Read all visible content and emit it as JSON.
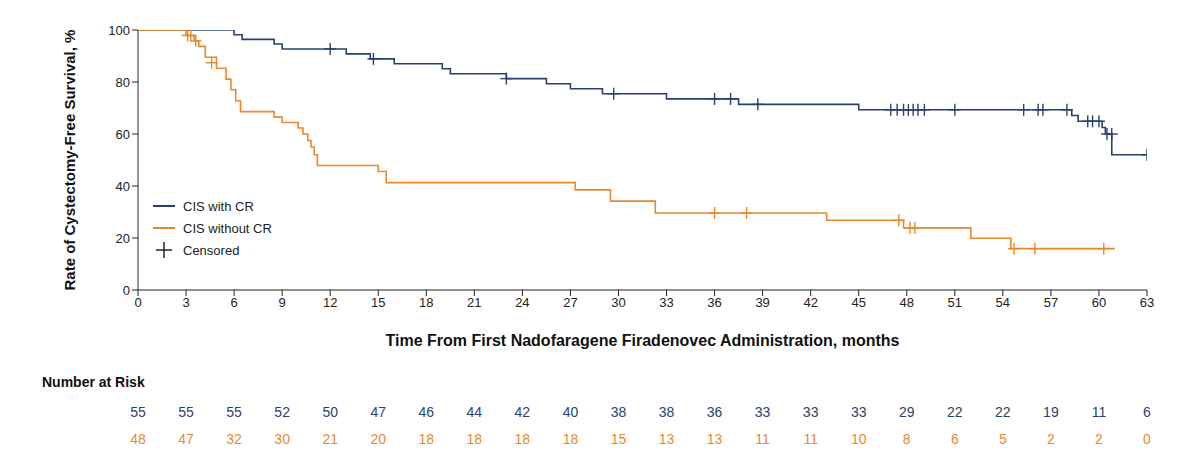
{
  "chart_data": {
    "type": "line",
    "line_style": "step",
    "x_label": "Time From First Nadofaragene Firadenovec Administration, months",
    "y_label": "Rate of Cystectomy-Free Survival, %",
    "xlim": [
      0,
      63
    ],
    "xticks": [
      0,
      3,
      6,
      9,
      12,
      15,
      18,
      21,
      24,
      27,
      30,
      33,
      36,
      39,
      42,
      45,
      48,
      51,
      54,
      57,
      60,
      63
    ],
    "ylim": [
      0,
      100
    ],
    "yticks": [
      0,
      20,
      40,
      60,
      80,
      100
    ],
    "grid": false,
    "legend": "lower left",
    "censored_label": "Censored",
    "series": [
      {
        "name": "CIS with CR",
        "color": "#2a4170",
        "x": [
          0,
          6,
          6.5,
          8.5,
          9,
          13,
          14.5,
          16,
          19,
          19.5,
          23,
          25.5,
          27,
          29,
          33,
          37.5,
          45,
          58.3,
          58.7,
          60.2,
          60.4,
          60.8,
          63.3
        ],
        "values": [
          100,
          98.2,
          96.4,
          94.6,
          92.7,
          90.8,
          88.9,
          87,
          85.1,
          83.2,
          81.3,
          79.3,
          77.4,
          75.5,
          73.5,
          71.4,
          69.3,
          67.1,
          64.9,
          62.5,
          60,
          52,
          52
        ],
        "censored_x": [
          12,
          14.7,
          23,
          29.7,
          36,
          37,
          38.7,
          47,
          47.4,
          47.8,
          48.1,
          48.4,
          48.7,
          49.1,
          51,
          55.3,
          56.2,
          56.5,
          58,
          59.3,
          59.6,
          60,
          60.5,
          60.8,
          63
        ],
        "censored_values": [
          92.7,
          88.9,
          81.3,
          75.5,
          73.5,
          73.5,
          71.4,
          69.3,
          69.3,
          69.3,
          69.3,
          69.3,
          69.3,
          69.3,
          69.3,
          69.3,
          69.3,
          69.3,
          69.3,
          64.9,
          64.9,
          64.9,
          60,
          60,
          52
        ]
      },
      {
        "name": "CIS without CR",
        "color": "#e8892e",
        "x": [
          0,
          3,
          3.5,
          3.8,
          4.2,
          4.9,
          5.5,
          5.8,
          6.1,
          6.4,
          8.5,
          9,
          10,
          10.3,
          10.6,
          10.8,
          11,
          11.2,
          15,
          15.5,
          27.3,
          29.5,
          32.3,
          43,
          47.8,
          52,
          54.5,
          61
        ],
        "values": [
          100,
          97.9,
          95.8,
          93.7,
          89.5,
          85.3,
          81.1,
          77,
          72.8,
          68.6,
          66.5,
          64.4,
          62.3,
          60,
          57.5,
          55,
          52,
          47.9,
          45.6,
          41.3,
          38.5,
          34.2,
          29.6,
          26.8,
          23.9,
          19.9,
          15.9,
          15.9
        ],
        "censored_x": [
          3.1,
          3.3,
          3.6,
          4.6,
          36,
          38,
          47.5,
          48.2,
          48.5,
          54.7,
          56,
          60.3
        ],
        "censored_values": [
          97.9,
          97.9,
          95.8,
          87.4,
          29.6,
          29.6,
          26.8,
          23.9,
          23.9,
          15.9,
          15.9,
          15.9
        ]
      }
    ],
    "number_at_risk": {
      "title": "Number at Risk",
      "rows": [
        [
          55,
          55,
          55,
          52,
          50,
          47,
          46,
          44,
          42,
          40,
          38,
          38,
          36,
          33,
          33,
          33,
          29,
          22,
          22,
          19,
          11,
          6
        ],
        [
          48,
          47,
          32,
          30,
          21,
          20,
          18,
          18,
          18,
          18,
          15,
          13,
          13,
          11,
          11,
          10,
          8,
          6,
          5,
          2,
          2,
          0
        ]
      ]
    }
  }
}
